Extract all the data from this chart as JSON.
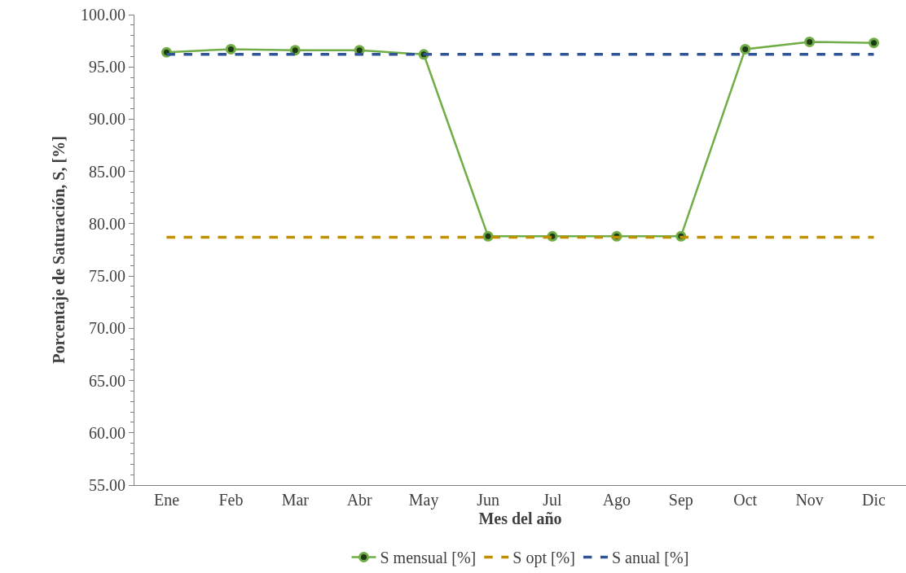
{
  "chart_data": {
    "type": "line",
    "xlabel": "Mes del año",
    "ylabel": "Porcentaje de Saturación, S, [%]",
    "categories": [
      "Ene",
      "Feb",
      "Mar",
      "Abr",
      "May",
      "Jun",
      "Jul",
      "Ago",
      "Sep",
      "Oct",
      "Nov",
      "Dic"
    ],
    "series": [
      {
        "name": "S mensual [%]",
        "color": "#70ad47",
        "marker": "circle",
        "line_style": "solid",
        "values": [
          96.4,
          96.7,
          96.6,
          96.6,
          96.2,
          78.8,
          78.8,
          78.8,
          78.8,
          96.7,
          97.4,
          97.3
        ]
      },
      {
        "name": "S opt [%]",
        "color": "#bf9000",
        "marker": "none",
        "line_style": "dashed",
        "values": [
          78.7,
          78.7,
          78.7,
          78.7,
          78.7,
          78.7,
          78.7,
          78.7,
          78.7,
          78.7,
          78.7,
          78.7
        ]
      },
      {
        "name": "S anual [%]",
        "color": "#2f5597",
        "marker": "none",
        "line_style": "dashed",
        "values": [
          96.2,
          96.2,
          96.2,
          96.2,
          96.2,
          96.2,
          96.2,
          96.2,
          96.2,
          96.2,
          96.2,
          96.2
        ]
      }
    ],
    "ylim": [
      55,
      100
    ],
    "yticks": [
      {
        "value": 55,
        "label": "55.00"
      },
      {
        "value": 60,
        "label": "60.00"
      },
      {
        "value": 65,
        "label": "65.00"
      },
      {
        "value": 70,
        "label": "70.00"
      },
      {
        "value": 75,
        "label": "75.00"
      },
      {
        "value": 80,
        "label": "80.00"
      },
      {
        "value": 85,
        "label": "85.00"
      },
      {
        "value": 90,
        "label": "90.00"
      },
      {
        "value": 95,
        "label": "95.00"
      },
      {
        "value": 100,
        "label": "100.00"
      }
    ],
    "grid": false,
    "legend": "bottom"
  }
}
